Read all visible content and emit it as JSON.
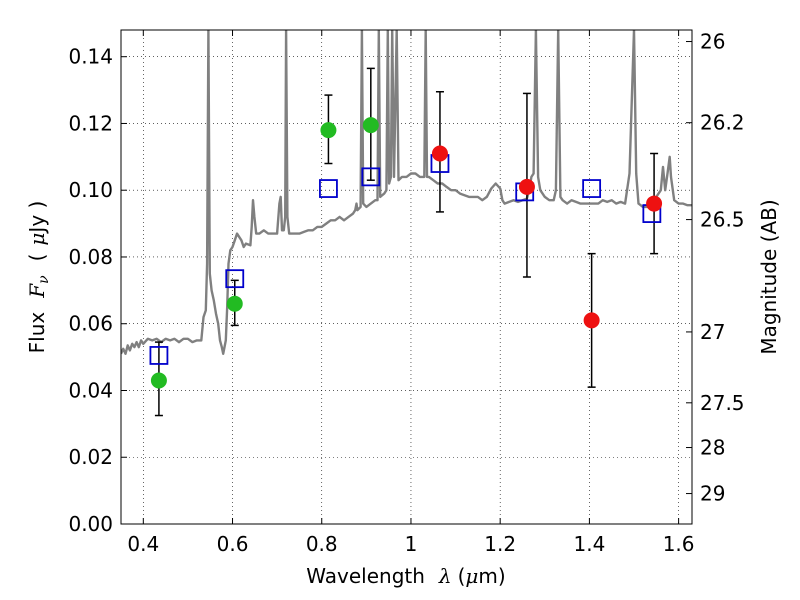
{
  "chart_data": {
    "type": "scatter",
    "xlabel": {
      "prefix": "Wavelength",
      "symbol": "λ",
      "unit_open": "(",
      "unit_mu": "μ",
      "unit_rest": "m)"
    },
    "ylabel": {
      "prefix": "Flux",
      "symbol": "F",
      "subscript": "ν",
      "unit_open": "(",
      "unit_mu": "μ",
      "unit_rest": "Jy )"
    },
    "ylabel_right": "Magnitude (AB)",
    "xlim": [
      0.35,
      1.63
    ],
    "ylim": [
      0.0,
      0.148
    ],
    "grid": true,
    "xticks": [
      {
        "value": 0.4,
        "label": "0.4"
      },
      {
        "value": 0.6,
        "label": "0.6"
      },
      {
        "value": 0.8,
        "label": "0.8"
      },
      {
        "value": 1.0,
        "label": "1"
      },
      {
        "value": 1.2,
        "label": "1.2"
      },
      {
        "value": 1.4,
        "label": "1.4"
      },
      {
        "value": 1.6,
        "label": "1.6"
      }
    ],
    "yticks": [
      {
        "value": 0.0,
        "label": "0.00"
      },
      {
        "value": 0.02,
        "label": "0.02"
      },
      {
        "value": 0.04,
        "label": "0.04"
      },
      {
        "value": 0.06,
        "label": "0.06"
      },
      {
        "value": 0.08,
        "label": "0.08"
      },
      {
        "value": 0.1,
        "label": "0.10"
      },
      {
        "value": 0.12,
        "label": "0.12"
      },
      {
        "value": 0.14,
        "label": "0.14"
      }
    ],
    "right_ticks": [
      {
        "mag": 26,
        "label": "26"
      },
      {
        "mag": 26.2,
        "label": "26.2"
      },
      {
        "mag": 26.5,
        "label": "26.5"
      },
      {
        "mag": 27,
        "label": "27"
      },
      {
        "mag": 27.5,
        "label": "27.5"
      },
      {
        "mag": 28,
        "label": "28"
      },
      {
        "mag": 29,
        "label": "29"
      }
    ],
    "series": [
      {
        "style": "line",
        "color": "#808080",
        "points": [
          [
            0.35,
            0.051
          ],
          [
            0.355,
            0.0525
          ],
          [
            0.36,
            0.051
          ],
          [
            0.365,
            0.0535
          ],
          [
            0.37,
            0.052
          ],
          [
            0.375,
            0.054
          ],
          [
            0.38,
            0.053
          ],
          [
            0.385,
            0.0545
          ],
          [
            0.39,
            0.053
          ],
          [
            0.395,
            0.055
          ],
          [
            0.4,
            0.054
          ],
          [
            0.41,
            0.0555
          ],
          [
            0.42,
            0.055
          ],
          [
            0.43,
            0.0555
          ],
          [
            0.44,
            0.0545
          ],
          [
            0.45,
            0.0555
          ],
          [
            0.46,
            0.055
          ],
          [
            0.47,
            0.0555
          ],
          [
            0.48,
            0.0545
          ],
          [
            0.49,
            0.0555
          ],
          [
            0.5,
            0.0555
          ],
          [
            0.51,
            0.0545
          ],
          [
            0.52,
            0.055
          ],
          [
            0.53,
            0.055
          ],
          [
            0.535,
            0.062
          ],
          [
            0.54,
            0.064
          ],
          [
            0.543,
            0.078
          ],
          [
            0.546,
            0.148
          ],
          [
            0.549,
            0.075
          ],
          [
            0.553,
            0.07
          ],
          [
            0.558,
            0.067
          ],
          [
            0.563,
            0.063
          ],
          [
            0.568,
            0.06
          ],
          [
            0.572,
            0.055
          ],
          [
            0.576,
            0.053
          ],
          [
            0.579,
            0.051
          ],
          [
            0.582,
            0.053
          ],
          [
            0.585,
            0.055
          ],
          [
            0.588,
            0.065
          ],
          [
            0.591,
            0.078
          ],
          [
            0.595,
            0.082
          ],
          [
            0.6,
            0.083
          ],
          [
            0.605,
            0.085
          ],
          [
            0.61,
            0.087
          ],
          [
            0.615,
            0.086
          ],
          [
            0.62,
            0.085
          ],
          [
            0.625,
            0.083
          ],
          [
            0.63,
            0.084
          ],
          [
            0.64,
            0.0835
          ],
          [
            0.643,
            0.089
          ],
          [
            0.646,
            0.097
          ],
          [
            0.649,
            0.092
          ],
          [
            0.653,
            0.087
          ],
          [
            0.66,
            0.087
          ],
          [
            0.67,
            0.088
          ],
          [
            0.68,
            0.087
          ],
          [
            0.69,
            0.087
          ],
          [
            0.7,
            0.087
          ],
          [
            0.705,
            0.096
          ],
          [
            0.708,
            0.098
          ],
          [
            0.711,
            0.088
          ],
          [
            0.715,
            0.088
          ],
          [
            0.718,
            0.092
          ],
          [
            0.72,
            0.148
          ],
          [
            0.723,
            0.092
          ],
          [
            0.727,
            0.087
          ],
          [
            0.74,
            0.087
          ],
          [
            0.75,
            0.087
          ],
          [
            0.76,
            0.0875
          ],
          [
            0.77,
            0.088
          ],
          [
            0.78,
            0.088
          ],
          [
            0.79,
            0.089
          ],
          [
            0.8,
            0.089
          ],
          [
            0.81,
            0.09
          ],
          [
            0.82,
            0.091
          ],
          [
            0.83,
            0.091
          ],
          [
            0.84,
            0.092
          ],
          [
            0.85,
            0.091
          ],
          [
            0.86,
            0.092
          ],
          [
            0.87,
            0.093
          ],
          [
            0.875,
            0.094
          ],
          [
            0.878,
            0.096
          ],
          [
            0.88,
            0.094
          ],
          [
            0.887,
            0.095
          ],
          [
            0.89,
            0.148
          ],
          [
            0.893,
            0.096
          ],
          [
            0.9,
            0.095
          ],
          [
            0.91,
            0.096
          ],
          [
            0.92,
            0.097
          ],
          [
            0.925,
            0.097
          ],
          [
            0.928,
            0.148
          ],
          [
            0.931,
            0.098
          ],
          [
            0.94,
            0.099
          ],
          [
            0.945,
            0.1
          ],
          [
            0.948,
            0.148
          ],
          [
            0.951,
            0.102
          ],
          [
            0.955,
            0.104
          ],
          [
            0.958,
            0.148
          ],
          [
            0.962,
            0.104
          ],
          [
            0.968,
            0.148
          ],
          [
            0.972,
            0.103
          ],
          [
            0.98,
            0.104
          ],
          [
            0.99,
            0.104
          ],
          [
            1.0,
            0.105
          ],
          [
            1.01,
            0.105
          ],
          [
            1.02,
            0.104
          ],
          [
            1.03,
            0.104
          ],
          [
            1.033,
            0.148
          ],
          [
            1.036,
            0.104
          ],
          [
            1.04,
            0.104
          ],
          [
            1.05,
            0.103
          ],
          [
            1.06,
            0.102
          ],
          [
            1.07,
            0.102
          ],
          [
            1.08,
            0.101
          ],
          [
            1.09,
            0.1
          ],
          [
            1.1,
            0.1
          ],
          [
            1.11,
            0.099
          ],
          [
            1.12,
            0.0985
          ],
          [
            1.13,
            0.098
          ],
          [
            1.14,
            0.098
          ],
          [
            1.15,
            0.098
          ],
          [
            1.16,
            0.097
          ],
          [
            1.17,
            0.098
          ],
          [
            1.18,
            0.1005
          ],
          [
            1.19,
            0.102
          ],
          [
            1.2,
            0.1005
          ],
          [
            1.205,
            0.097
          ],
          [
            1.21,
            0.096
          ],
          [
            1.22,
            0.0965
          ],
          [
            1.23,
            0.097
          ],
          [
            1.24,
            0.0965
          ],
          [
            1.25,
            0.097
          ],
          [
            1.26,
            0.0975
          ],
          [
            1.265,
            0.1
          ],
          [
            1.27,
            0.104
          ],
          [
            1.275,
            0.105
          ],
          [
            1.28,
            0.148
          ],
          [
            1.285,
            0.104
          ],
          [
            1.29,
            0.1
          ],
          [
            1.3,
            0.098
          ],
          [
            1.31,
            0.097
          ],
          [
            1.32,
            0.097
          ],
          [
            1.325,
            0.1
          ],
          [
            1.33,
            0.148
          ],
          [
            1.335,
            0.098
          ],
          [
            1.34,
            0.097
          ],
          [
            1.35,
            0.096
          ],
          [
            1.36,
            0.097
          ],
          [
            1.37,
            0.0965
          ],
          [
            1.38,
            0.096
          ],
          [
            1.39,
            0.096
          ],
          [
            1.4,
            0.096
          ],
          [
            1.41,
            0.096
          ],
          [
            1.42,
            0.096
          ],
          [
            1.43,
            0.097
          ],
          [
            1.44,
            0.0965
          ],
          [
            1.45,
            0.097
          ],
          [
            1.46,
            0.096
          ],
          [
            1.47,
            0.0965
          ],
          [
            1.48,
            0.096
          ],
          [
            1.49,
            0.105
          ],
          [
            1.5,
            0.148
          ],
          [
            1.505,
            0.105
          ],
          [
            1.51,
            0.096
          ],
          [
            1.52,
            0.095
          ],
          [
            1.53,
            0.095
          ],
          [
            1.54,
            0.096
          ],
          [
            1.55,
            0.098
          ],
          [
            1.56,
            0.1
          ],
          [
            1.565,
            0.107
          ],
          [
            1.57,
            0.1
          ],
          [
            1.575,
            0.105
          ],
          [
            1.58,
            0.11
          ],
          [
            1.583,
            0.104
          ],
          [
            1.59,
            0.097
          ],
          [
            1.6,
            0.096
          ],
          [
            1.61,
            0.096
          ],
          [
            1.62,
            0.0955
          ],
          [
            1.63,
            0.0955
          ]
        ]
      },
      {
        "style": "open-square",
        "color": "#0000cc",
        "points": [
          [
            0.435,
            0.0505
          ],
          [
            0.605,
            0.0735
          ],
          [
            0.815,
            0.1005
          ],
          [
            0.91,
            0.104
          ],
          [
            1.065,
            0.108
          ],
          [
            1.255,
            0.0995
          ],
          [
            1.405,
            0.1005
          ],
          [
            1.54,
            0.093
          ]
        ]
      },
      {
        "style": "filled-circle",
        "color": "#22bb22",
        "points": [
          {
            "x": 0.435,
            "y": 0.043,
            "err": [
              0.0325,
              0.0545
            ]
          },
          {
            "x": 0.605,
            "y": 0.066,
            "err": [
              0.0595,
              0.073
            ]
          },
          {
            "x": 0.815,
            "y": 0.118,
            "err": [
              0.108,
              0.1285
            ]
          },
          {
            "x": 0.91,
            "y": 0.1195,
            "err": [
              0.103,
              0.1365
            ]
          }
        ]
      },
      {
        "style": "filled-circle",
        "color": "#ee1111",
        "points": [
          {
            "x": 1.065,
            "y": 0.111,
            "err": [
              0.0935,
              0.1295
            ]
          },
          {
            "x": 1.26,
            "y": 0.101,
            "err": [
              0.074,
              0.129
            ]
          },
          {
            "x": 1.405,
            "y": 0.061,
            "err": [
              0.041,
              0.081
            ]
          },
          {
            "x": 1.545,
            "y": 0.096,
            "err": [
              0.081,
              0.111
            ]
          }
        ]
      }
    ]
  }
}
